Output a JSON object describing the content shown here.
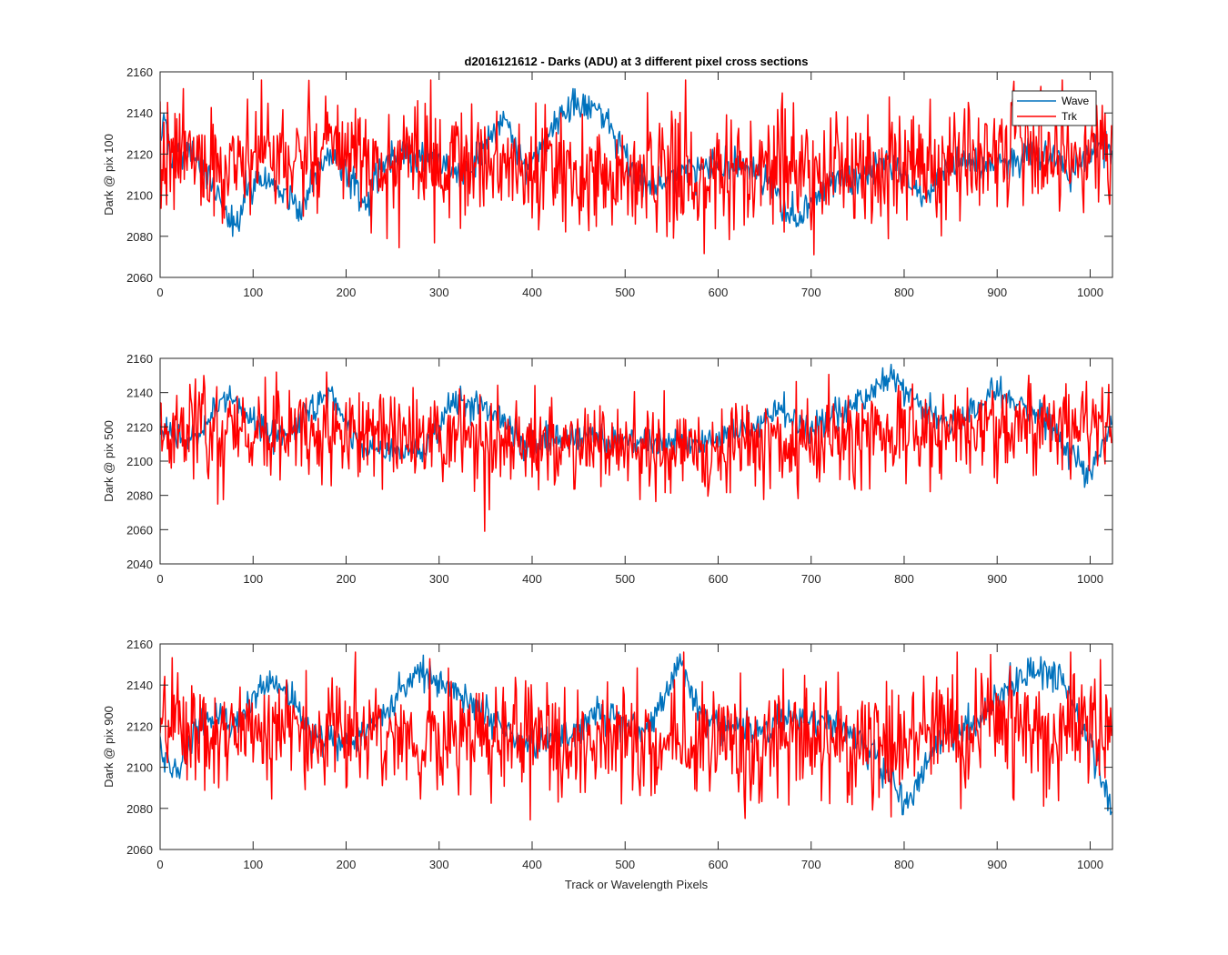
{
  "chart_data": [
    {
      "type": "line",
      "title": "d2016121612 - Darks (ADU) at 3 different pixel cross sections",
      "ylabel": "Dark @ pix 100",
      "xlabel": "",
      "xlim": [
        0,
        1024
      ],
      "ylim": [
        2060,
        2160
      ],
      "xticks": [
        "0",
        "100",
        "200",
        "300",
        "400",
        "500",
        "600",
        "700",
        "800",
        "900",
        "1000"
      ],
      "yticks": [
        "2060",
        "2080",
        "2100",
        "2120",
        "2140",
        "2160"
      ],
      "legend": {
        "location": "top-right",
        "entries": [
          "Wave",
          "Trk"
        ]
      },
      "series": [
        {
          "name": "Wave",
          "color": "#0072BD",
          "n": 1024,
          "anchors": [
            [
              0,
              2128
            ],
            [
              5,
              2135
            ],
            [
              10,
              2124
            ],
            [
              20,
              2118
            ],
            [
              30,
              2122
            ],
            [
              40,
              2117
            ],
            [
              50,
              2110
            ],
            [
              60,
              2102
            ],
            [
              70,
              2092
            ],
            [
              78,
              2085
            ],
            [
              85,
              2090
            ],
            [
              95,
              2103
            ],
            [
              110,
              2111
            ],
            [
              125,
              2105
            ],
            [
              135,
              2100
            ],
            [
              145,
              2095
            ],
            [
              152,
              2092
            ],
            [
              160,
              2105
            ],
            [
              175,
              2115
            ],
            [
              190,
              2118
            ],
            [
              205,
              2110
            ],
            [
              215,
              2098
            ],
            [
              222,
              2094
            ],
            [
              230,
              2108
            ],
            [
              250,
              2120
            ],
            [
              270,
              2118
            ],
            [
              290,
              2120
            ],
            [
              305,
              2116
            ],
            [
              320,
              2110
            ],
            [
              335,
              2114
            ],
            [
              350,
              2124
            ],
            [
              360,
              2130
            ],
            [
              370,
              2138
            ],
            [
              380,
              2128
            ],
            [
              390,
              2116
            ],
            [
              395,
              2110
            ],
            [
              405,
              2122
            ],
            [
              420,
              2133
            ],
            [
              435,
              2140
            ],
            [
              450,
              2146
            ],
            [
              460,
              2143
            ],
            [
              470,
              2145
            ],
            [
              480,
              2138
            ],
            [
              490,
              2128
            ],
            [
              500,
              2120
            ],
            [
              510,
              2112
            ],
            [
              525,
              2105
            ],
            [
              540,
              2108
            ],
            [
              560,
              2110
            ],
            [
              580,
              2113
            ],
            [
              600,
              2115
            ],
            [
              620,
              2114
            ],
            [
              640,
              2112
            ],
            [
              655,
              2108
            ],
            [
              665,
              2100
            ],
            [
              675,
              2092
            ],
            [
              685,
              2088
            ],
            [
              700,
              2098
            ],
            [
              720,
              2105
            ],
            [
              740,
              2108
            ],
            [
              760,
              2112
            ],
            [
              780,
              2116
            ],
            [
              800,
              2112
            ],
            [
              810,
              2104
            ],
            [
              820,
              2098
            ],
            [
              830,
              2103
            ],
            [
              845,
              2112
            ],
            [
              860,
              2116
            ],
            [
              875,
              2116
            ],
            [
              890,
              2114
            ],
            [
              905,
              2116
            ],
            [
              920,
              2118
            ],
            [
              935,
              2122
            ],
            [
              950,
              2120
            ],
            [
              965,
              2116
            ],
            [
              980,
              2112
            ],
            [
              995,
              2118
            ],
            [
              1010,
              2125
            ],
            [
              1024,
              2122
            ]
          ],
          "amp": 4,
          "range": [
            2080,
            2155
          ],
          "seed": 101
        },
        {
          "name": "Trk",
          "color": "#FF0000",
          "n": 1024,
          "anchors": [
            [
              0,
              2118
            ],
            [
              100,
              2118
            ],
            [
              200,
              2118
            ],
            [
              300,
              2116
            ],
            [
              400,
              2113
            ],
            [
              500,
              2111
            ],
            [
              600,
              2110
            ],
            [
              700,
              2112
            ],
            [
              800,
              2115
            ],
            [
              900,
              2120
            ],
            [
              1024,
              2122
            ]
          ],
          "amp": 14,
          "range": [
            2061,
            2156
          ],
          "seed": 202
        }
      ]
    },
    {
      "type": "line",
      "title": "",
      "ylabel": "Dark @ pix 500",
      "xlabel": "",
      "xlim": [
        0,
        1024
      ],
      "ylim": [
        2040,
        2160
      ],
      "xticks": [
        "0",
        "100",
        "200",
        "300",
        "400",
        "500",
        "600",
        "700",
        "800",
        "900",
        "1000"
      ],
      "yticks": [
        "2040",
        "2060",
        "2080",
        "2100",
        "2120",
        "2140",
        "2160"
      ],
      "series": [
        {
          "name": "Wave",
          "color": "#0072BD",
          "n": 1024,
          "anchors": [
            [
              0,
              2122
            ],
            [
              10,
              2118
            ],
            [
              25,
              2112
            ],
            [
              40,
              2112
            ],
            [
              55,
              2128
            ],
            [
              70,
              2138
            ],
            [
              80,
              2136
            ],
            [
              95,
              2126
            ],
            [
              115,
              2118
            ],
            [
              135,
              2116
            ],
            [
              150,
              2122
            ],
            [
              165,
              2132
            ],
            [
              175,
              2138
            ],
            [
              185,
              2140
            ],
            [
              200,
              2122
            ],
            [
              215,
              2106
            ],
            [
              235,
              2106
            ],
            [
              255,
              2106
            ],
            [
              270,
              2110
            ],
            [
              280,
              2104
            ],
            [
              295,
              2118
            ],
            [
              310,
              2130
            ],
            [
              325,
              2136
            ],
            [
              340,
              2134
            ],
            [
              355,
              2130
            ],
            [
              370,
              2122
            ],
            [
              385,
              2114
            ],
            [
              395,
              2108
            ],
            [
              405,
              2110
            ],
            [
              420,
              2112
            ],
            [
              440,
              2112
            ],
            [
              460,
              2118
            ],
            [
              480,
              2112
            ],
            [
              500,
              2110
            ],
            [
              520,
              2110
            ],
            [
              540,
              2112
            ],
            [
              560,
              2112
            ],
            [
              580,
              2110
            ],
            [
              600,
              2112
            ],
            [
              620,
              2116
            ],
            [
              640,
              2120
            ],
            [
              655,
              2126
            ],
            [
              665,
              2132
            ],
            [
              675,
              2126
            ],
            [
              690,
              2120
            ],
            [
              710,
              2120
            ],
            [
              730,
              2128
            ],
            [
              750,
              2134
            ],
            [
              770,
              2142
            ],
            [
              785,
              2148
            ],
            [
              795,
              2146
            ],
            [
              805,
              2138
            ],
            [
              820,
              2130
            ],
            [
              840,
              2124
            ],
            [
              860,
              2124
            ],
            [
              880,
              2130
            ],
            [
              890,
              2138
            ],
            [
              900,
              2142
            ],
            [
              920,
              2134
            ],
            [
              940,
              2128
            ],
            [
              955,
              2124
            ],
            [
              970,
              2112
            ],
            [
              985,
              2102
            ],
            [
              995,
              2092
            ],
            [
              1005,
              2098
            ],
            [
              1015,
              2112
            ],
            [
              1024,
              2124
            ]
          ],
          "amp": 4,
          "range": [
            2080,
            2157
          ],
          "seed": 303
        },
        {
          "name": "Trk",
          "color": "#FF0000",
          "n": 1024,
          "anchors": [
            [
              0,
              2118
            ],
            [
              100,
              2117
            ],
            [
              200,
              2116
            ],
            [
              300,
              2114
            ],
            [
              400,
              2110
            ],
            [
              500,
              2108
            ],
            [
              600,
              2108
            ],
            [
              700,
              2112
            ],
            [
              800,
              2116
            ],
            [
              900,
              2120
            ],
            [
              1024,
              2122
            ]
          ],
          "amp": 14,
          "range": [
            2054,
            2152
          ],
          "seed": 404
        }
      ]
    },
    {
      "type": "line",
      "title": "",
      "ylabel": "Dark @ pix 900",
      "xlabel": "Track or Wavelength Pixels",
      "xlim": [
        0,
        1024
      ],
      "ylim": [
        2060,
        2160
      ],
      "xticks": [
        "0",
        "100",
        "200",
        "300",
        "400",
        "500",
        "600",
        "700",
        "800",
        "900",
        "1000"
      ],
      "yticks": [
        "2060",
        "2080",
        "2100",
        "2120",
        "2140",
        "2160"
      ],
      "series": [
        {
          "name": "Wave",
          "color": "#0072BD",
          "n": 1024,
          "anchors": [
            [
              0,
              2108
            ],
            [
              10,
              2102
            ],
            [
              20,
              2098
            ],
            [
              30,
              2110
            ],
            [
              45,
              2122
            ],
            [
              60,
              2124
            ],
            [
              75,
              2120
            ],
            [
              90,
              2125
            ],
            [
              105,
              2135
            ],
            [
              115,
              2142
            ],
            [
              130,
              2140
            ],
            [
              140,
              2135
            ],
            [
              150,
              2124
            ],
            [
              165,
              2116
            ],
            [
              180,
              2114
            ],
            [
              200,
              2112
            ],
            [
              215,
              2115
            ],
            [
              230,
              2122
            ],
            [
              245,
              2128
            ],
            [
              260,
              2138
            ],
            [
              275,
              2146
            ],
            [
              290,
              2144
            ],
            [
              305,
              2140
            ],
            [
              320,
              2136
            ],
            [
              340,
              2130
            ],
            [
              360,
              2122
            ],
            [
              375,
              2118
            ],
            [
              390,
              2110
            ],
            [
              405,
              2112
            ],
            [
              420,
              2114
            ],
            [
              440,
              2116
            ],
            [
              460,
              2122
            ],
            [
              475,
              2128
            ],
            [
              490,
              2126
            ],
            [
              505,
              2120
            ],
            [
              520,
              2118
            ],
            [
              535,
              2125
            ],
            [
              550,
              2142
            ],
            [
              558,
              2152
            ],
            [
              565,
              2144
            ],
            [
              580,
              2128
            ],
            [
              600,
              2120
            ],
            [
              620,
              2118
            ],
            [
              640,
              2116
            ],
            [
              660,
              2120
            ],
            [
              680,
              2124
            ],
            [
              700,
              2124
            ],
            [
              720,
              2122
            ],
            [
              740,
              2118
            ],
            [
              760,
              2110
            ],
            [
              775,
              2100
            ],
            [
              790,
              2092
            ],
            [
              800,
              2082
            ],
            [
              812,
              2090
            ],
            [
              825,
              2105
            ],
            [
              840,
              2114
            ],
            [
              860,
              2116
            ],
            [
              880,
              2122
            ],
            [
              895,
              2130
            ],
            [
              910,
              2138
            ],
            [
              925,
              2144
            ],
            [
              940,
              2148
            ],
            [
              955,
              2146
            ],
            [
              970,
              2140
            ],
            [
              985,
              2128
            ],
            [
              995,
              2116
            ],
            [
              1005,
              2104
            ],
            [
              1015,
              2090
            ],
            [
              1024,
              2082
            ]
          ],
          "amp": 4,
          "range": [
            2077,
            2160
          ],
          "seed": 505
        },
        {
          "name": "Trk",
          "color": "#FF0000",
          "n": 1024,
          "anchors": [
            [
              0,
              2118
            ],
            [
              100,
              2118
            ],
            [
              200,
              2117
            ],
            [
              300,
              2115
            ],
            [
              400,
              2113
            ],
            [
              500,
              2112
            ],
            [
              600,
              2112
            ],
            [
              700,
              2114
            ],
            [
              800,
              2116
            ],
            [
              900,
              2120
            ],
            [
              1024,
              2120
            ]
          ],
          "amp": 14,
          "range": [
            2062,
            2156
          ],
          "seed": 606
        }
      ]
    }
  ]
}
